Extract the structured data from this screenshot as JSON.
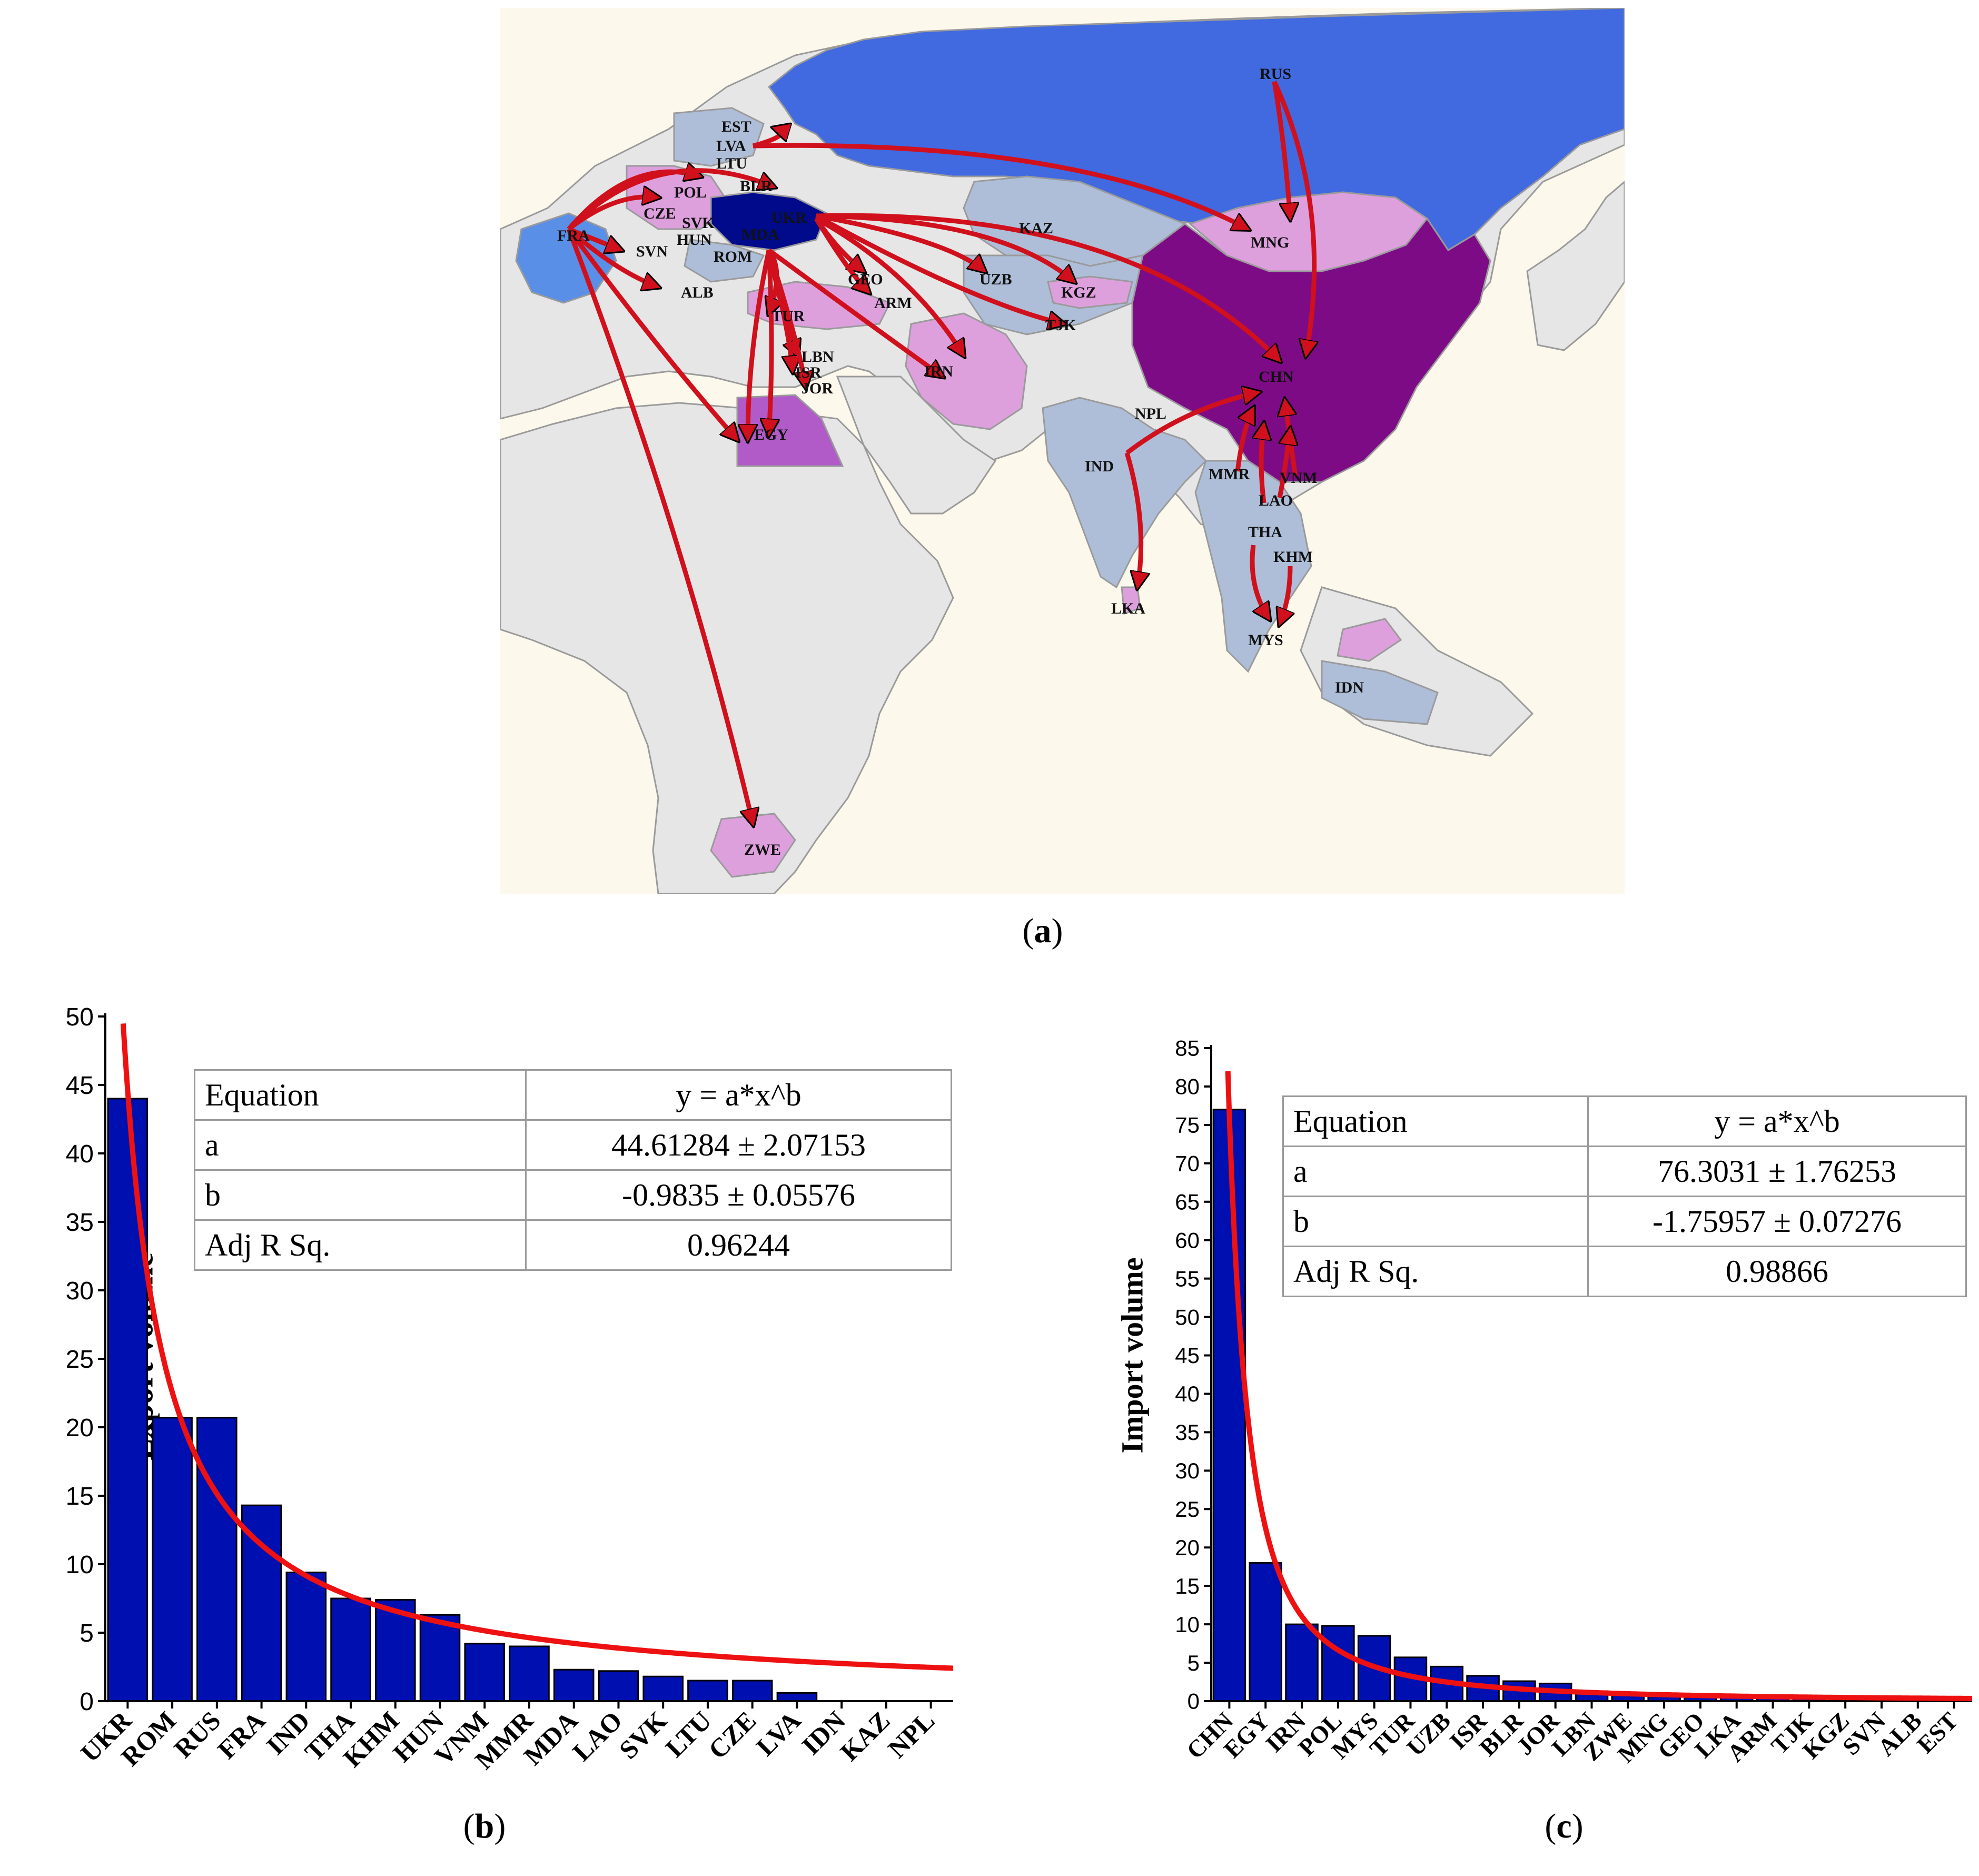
{
  "map": {
    "arrow_color": "#d0101c",
    "colors": {
      "ocean": "#fdf8ec",
      "land": "#e6e6e6",
      "border": "#9a9a9a",
      "russia": "#4169e0",
      "china": "#7e0b86",
      "ukraine": "#000a8a",
      "france": "#5a8fe8",
      "light_blue": "#aebed8",
      "pink": "#dda0dd",
      "purple": "#b05bc8"
    },
    "labels": {
      "RUS": "RUS",
      "EST": "EST",
      "LVA": "LVA",
      "LTU": "LTU",
      "BLR": "BLR",
      "POL": "POL",
      "CZE": "CZE",
      "SVK": "SVK",
      "UKR": "UKR",
      "HUN": "HUN",
      "MDA": "MDA",
      "ROM": "ROM",
      "FRA": "FRA",
      "SVN": "SVN",
      "ALB": "ALB",
      "GEO": "GEO",
      "ARM": "ARM",
      "TUR": "TUR",
      "LBN": "LBN",
      "ISR": "ISR",
      "JOR": "JOR",
      "EGY": "EGY",
      "IRN": "IRN",
      "KAZ": "KAZ",
      "UZB": "UZB",
      "KGZ": "KGZ",
      "TJK": "TJK",
      "MNG": "MNG",
      "CHN": "CHN",
      "NPL": "NPL",
      "IND": "IND",
      "MMR": "MMR",
      "VNM": "VNM",
      "LAO": "LAO",
      "THA": "THA",
      "KHM": "KHM",
      "LKA": "LKA",
      "MYS": "MYS",
      "IDN": "IDN",
      "ZWE": "ZWE"
    }
  },
  "captions": {
    "a": "a",
    "b": "b",
    "c": "c"
  },
  "chart_data": [
    {
      "type": "bar",
      "id": "export",
      "ylabel": "Export volume",
      "xlabel": "",
      "ylim": [
        0,
        50
      ],
      "yticks": [
        0,
        5,
        10,
        15,
        20,
        25,
        30,
        35,
        40,
        45,
        50
      ],
      "categories": [
        "UKR",
        "ROM",
        "RUS",
        "FRA",
        "IND",
        "THA",
        "KHM",
        "HUN",
        "VNM",
        "MMR",
        "MDA",
        "LAO",
        "SVK",
        "LTU",
        "CZE",
        "LVA",
        "IDN",
        "KAZ",
        "NPL"
      ],
      "values": [
        44,
        20.7,
        20.7,
        14.3,
        9.4,
        7.5,
        7.4,
        6.3,
        4.2,
        4.0,
        2.3,
        2.2,
        1.8,
        1.5,
        1.5,
        0.6,
        0,
        0,
        0
      ],
      "bar_color": "#0010b0",
      "fit_color": "#ee1111",
      "fit": {
        "a": 44.61284,
        "b": -0.9835
      },
      "fit_table": [
        [
          "Equation",
          "y = a*x^b"
        ],
        [
          "a",
          "44.61284 ± 2.07153"
        ],
        [
          "b",
          "-0.9835 ± 0.05576"
        ],
        [
          "Adj R Sq.",
          "0.96244"
        ]
      ]
    },
    {
      "type": "bar",
      "id": "import",
      "ylabel": "Import volume",
      "xlabel": "",
      "ylim": [
        0,
        85
      ],
      "yticks": [
        0,
        5,
        10,
        15,
        20,
        25,
        30,
        35,
        40,
        45,
        50,
        55,
        60,
        65,
        70,
        75,
        80,
        85
      ],
      "categories": [
        "CHN",
        "EGY",
        "IRN",
        "POL",
        "MYS",
        "TUR",
        "UZB",
        "ISR",
        "BLR",
        "JOR",
        "LBN",
        "ZWE",
        "MNG",
        "GEO",
        "LKA",
        "ARM",
        "TJK",
        "KGZ",
        "SVN",
        "ALB",
        "EST"
      ],
      "values": [
        77,
        18,
        10,
        9.8,
        8.5,
        5.7,
        4.5,
        3.3,
        2.6,
        2.3,
        1.3,
        0.8,
        0.6,
        0.5,
        0.5,
        0.4,
        0.4,
        0.4,
        0.3,
        0.3,
        0.3
      ],
      "bar_color": "#0010b0",
      "fit_color": "#ee1111",
      "fit": {
        "a": 76.3031,
        "b": -1.75957
      },
      "fit_table": [
        [
          "Equation",
          "y = a*x^b"
        ],
        [
          "a",
          "76.3031 ± 1.76253"
        ],
        [
          "b",
          "-1.75957 ± 0.07276"
        ],
        [
          "Adj R Sq.",
          "0.98866"
        ]
      ]
    }
  ]
}
